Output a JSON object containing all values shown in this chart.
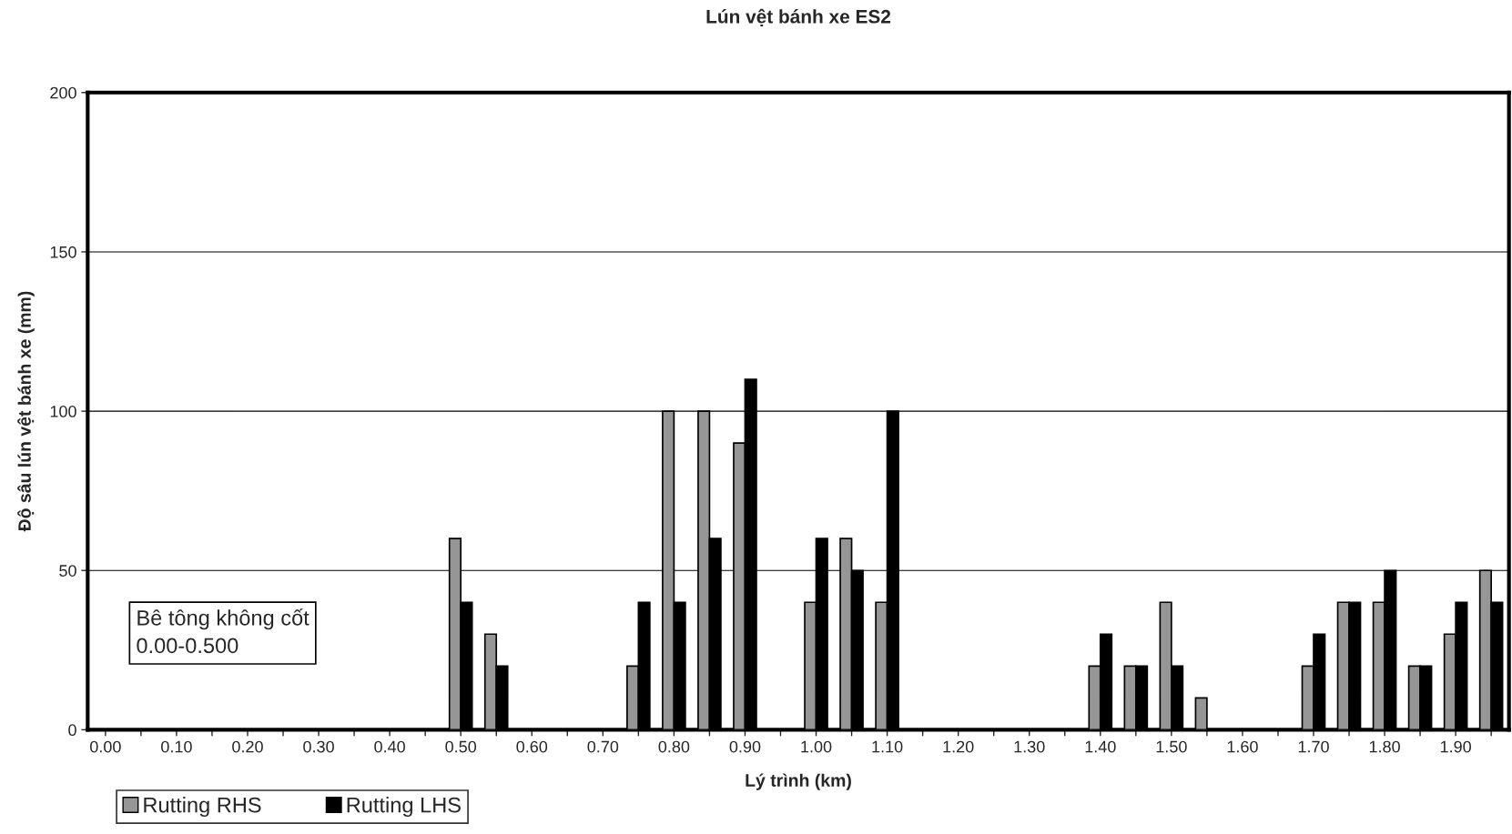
{
  "chart_data": {
    "type": "bar",
    "title": "Lún vệt bánh xe ES2",
    "xlabel": "Lý trình (km)",
    "ylabel": "Độ sâu lún vệt bánh xe (mm)",
    "categories": [
      "0.00",
      null,
      "0.10",
      null,
      "0.20",
      null,
      "0.30",
      null,
      "0.40",
      null,
      "0.50",
      null,
      "0.60",
      null,
      "0.70",
      null,
      "0.80",
      null,
      "0.90",
      null,
      "1.00",
      null,
      "1.10",
      null,
      "1.20",
      null,
      "1.30",
      null,
      "1.40",
      null,
      "1.50",
      null,
      "1.60",
      null,
      "1.70",
      null,
      "1.80",
      null,
      "1.90",
      null
    ],
    "series": [
      {
        "name": "Rutting RHS",
        "color": "#969696",
        "values": [
          0,
          0,
          0,
          0,
          0,
          0,
          0,
          0,
          0,
          0,
          60,
          30,
          0,
          0,
          0,
          20,
          100,
          100,
          90,
          0,
          40,
          60,
          40,
          0,
          0,
          0,
          0,
          0,
          20,
          20,
          40,
          10,
          0,
          0,
          20,
          40,
          40,
          20,
          30,
          50
        ]
      },
      {
        "name": "Rutting LHS",
        "color": "#000000",
        "values": [
          0,
          0,
          0,
          0,
          0,
          0,
          0,
          0,
          0,
          0,
          40,
          20,
          0,
          0,
          0,
          40,
          40,
          60,
          110,
          0,
          60,
          50,
          100,
          0,
          0,
          0,
          0,
          0,
          30,
          20,
          20,
          0,
          0,
          0,
          30,
          40,
          50,
          20,
          40,
          40
        ]
      }
    ],
    "ylim": [
      0,
      200
    ],
    "yticks": [
      0,
      50,
      100,
      150,
      200
    ],
    "grid": "y",
    "legend": "bottom left",
    "annotations": [
      "Bê tông không cốt\n0.00-0.500"
    ]
  }
}
